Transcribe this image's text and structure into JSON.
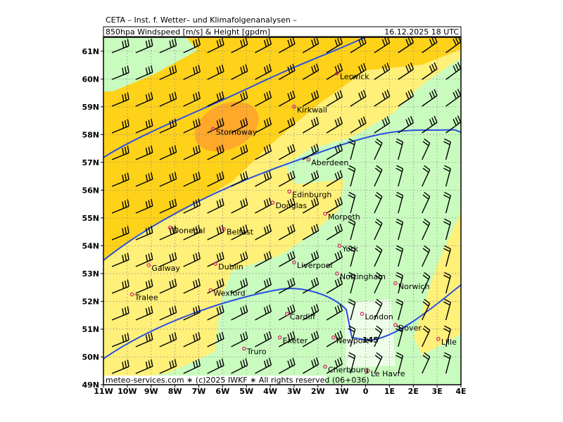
{
  "header": {
    "institute": "CETA – Inst. f. Wetter– und Klimafolgenanalysen –",
    "parameter": "850hpa Windspeed [m/s] & Height [gpdm]",
    "datetime": "16.12.2025 18 UTC"
  },
  "map": {
    "xlim": [
      -11,
      4
    ],
    "ylim": [
      49,
      61.5
    ],
    "xticks": [
      {
        "value": -11,
        "label": "11W"
      },
      {
        "value": -10,
        "label": "10W"
      },
      {
        "value": -9,
        "label": "9W"
      },
      {
        "value": -8,
        "label": "8W"
      },
      {
        "value": -7,
        "label": "7W"
      },
      {
        "value": -6,
        "label": "6W"
      },
      {
        "value": -5,
        "label": "5W"
      },
      {
        "value": -4,
        "label": "4W"
      },
      {
        "value": -3,
        "label": "3W"
      },
      {
        "value": -2,
        "label": "2W"
      },
      {
        "value": -1,
        "label": "1W"
      },
      0,
      {
        "value": 1,
        "label": "1E"
      },
      {
        "value": 2,
        "label": "2E"
      },
      {
        "value": 3,
        "label": "3E"
      },
      {
        "value": 4,
        "label": "4E"
      }
    ],
    "yticks": [
      {
        "value": 49,
        "label": "49N"
      },
      {
        "value": 50,
        "label": "50N"
      },
      {
        "value": 51,
        "label": "51N"
      },
      {
        "value": 52,
        "label": "52N"
      },
      {
        "value": 53,
        "label": "53N"
      },
      {
        "value": 54,
        "label": "54N"
      },
      {
        "value": 55,
        "label": "55N"
      },
      {
        "value": 56,
        "label": "56N"
      },
      {
        "value": 57,
        "label": "57N"
      },
      {
        "value": 58,
        "label": "58N"
      },
      {
        "value": 59,
        "label": "59N"
      },
      {
        "value": 60,
        "label": "60N"
      },
      {
        "value": 61,
        "label": "61N"
      }
    ],
    "cities": [
      {
        "name": "Lerwick",
        "lon": -1.2,
        "lat": 60.2
      },
      {
        "name": "Kirkwall",
        "lon": -3.0,
        "lat": 59.0
      },
      {
        "name": "Stornoway",
        "lon": -6.4,
        "lat": 58.2
      },
      {
        "name": "Aberdeen",
        "lon": -2.4,
        "lat": 57.1
      },
      {
        "name": "Edinburgh",
        "lon": -3.2,
        "lat": 55.95
      },
      {
        "name": "Douglas",
        "lon": -3.9,
        "lat": 55.55
      },
      {
        "name": "Morpeth",
        "lon": -1.7,
        "lat": 55.15
      },
      {
        "name": "Donegal",
        "lon": -8.2,
        "lat": 54.65
      },
      {
        "name": "Belfast",
        "lon": -5.95,
        "lat": 54.6
      },
      {
        "name": "York",
        "lon": -1.1,
        "lat": 54.0
      },
      {
        "name": "Liverpool",
        "lon": -3.0,
        "lat": 53.4
      },
      {
        "name": "Galway",
        "lon": -9.1,
        "lat": 53.3
      },
      {
        "name": "Dublin",
        "lon": -6.3,
        "lat": 53.35
      },
      {
        "name": "Nottingham",
        "lon": -1.2,
        "lat": 53.0
      },
      {
        "name": "Norwich",
        "lon": 1.25,
        "lat": 52.65
      },
      {
        "name": "Wexford",
        "lon": -6.5,
        "lat": 52.4
      },
      {
        "name": "Tralee",
        "lon": -9.8,
        "lat": 52.25
      },
      {
        "name": "Cardiff",
        "lon": -3.3,
        "lat": 51.55
      },
      {
        "name": "London",
        "lon": -0.15,
        "lat": 51.55
      },
      {
        "name": "Dover",
        "lon": 1.25,
        "lat": 51.15
      },
      {
        "name": "Exeter",
        "lon": -3.6,
        "lat": 50.7
      },
      {
        "name": "Newport",
        "lon": -1.35,
        "lat": 50.7
      },
      {
        "name": "Truro",
        "lon": -5.1,
        "lat": 50.3
      },
      {
        "name": "Lille",
        "lon": 3.05,
        "lat": 50.65
      },
      {
        "name": "Le Havre",
        "lon": 0.1,
        "lat": 49.5
      },
      {
        "name": "Cherbourg",
        "lon": -1.7,
        "lat": 49.65
      }
    ],
    "contour_label": "145"
  },
  "footer": "meteo-services.com ∗ (c)2025 IWKF ∗ All rights reserved (06+036)"
}
